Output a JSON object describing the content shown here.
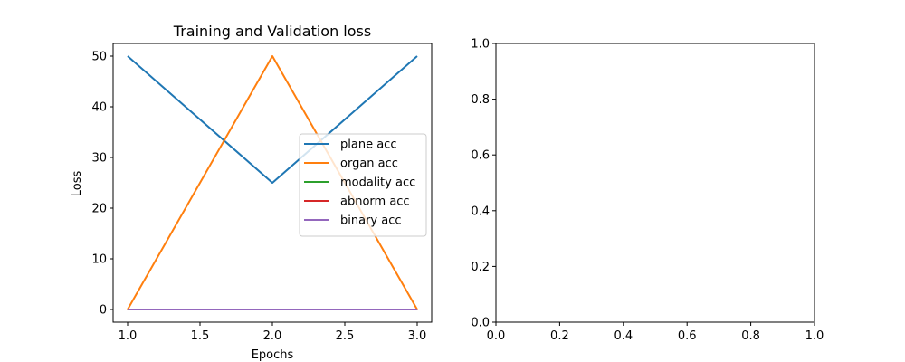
{
  "chart_data": [
    {
      "type": "line",
      "title": "Training and Validation loss",
      "xlabel": "Epochs",
      "ylabel": "Loss",
      "x": [
        1.0,
        2.0,
        3.0
      ],
      "xlim": [
        0.9,
        3.1
      ],
      "ylim": [
        -2.5,
        52.5
      ],
      "xticks": [
        1.0,
        1.5,
        2.0,
        2.5,
        3.0
      ],
      "xtick_labels": [
        "1.0",
        "1.5",
        "2.0",
        "2.5",
        "3.0"
      ],
      "yticks": [
        0,
        10,
        20,
        30,
        40,
        50
      ],
      "ytick_labels": [
        "0",
        "10",
        "20",
        "30",
        "40",
        "50"
      ],
      "grid": false,
      "legend_position": "center-right",
      "series": [
        {
          "name": "plane acc",
          "color": "#1f77b4",
          "values": [
            50,
            25,
            50
          ]
        },
        {
          "name": "organ acc",
          "color": "#ff7f0e",
          "values": [
            0,
            50,
            0
          ]
        },
        {
          "name": "modality acc",
          "color": "#2ca02c",
          "values": [
            0,
            0,
            0
          ]
        },
        {
          "name": "abnorm acc",
          "color": "#d62728",
          "values": [
            0,
            0,
            0
          ]
        },
        {
          "name": "binary acc",
          "color": "#9467bd",
          "values": [
            0,
            0,
            0
          ]
        }
      ]
    },
    {
      "type": "line",
      "title": "",
      "xlabel": "",
      "ylabel": "",
      "xlim": [
        0.0,
        1.0
      ],
      "ylim": [
        0.0,
        1.0
      ],
      "xticks": [
        0.0,
        0.2,
        0.4,
        0.6,
        0.8,
        1.0
      ],
      "xtick_labels": [
        "0.0",
        "0.2",
        "0.4",
        "0.6",
        "0.8",
        "1.0"
      ],
      "yticks": [
        0.0,
        0.2,
        0.4,
        0.6,
        0.8,
        1.0
      ],
      "ytick_labels": [
        "0.0",
        "0.2",
        "0.4",
        "0.6",
        "0.8",
        "1.0"
      ],
      "grid": false,
      "series": []
    }
  ]
}
